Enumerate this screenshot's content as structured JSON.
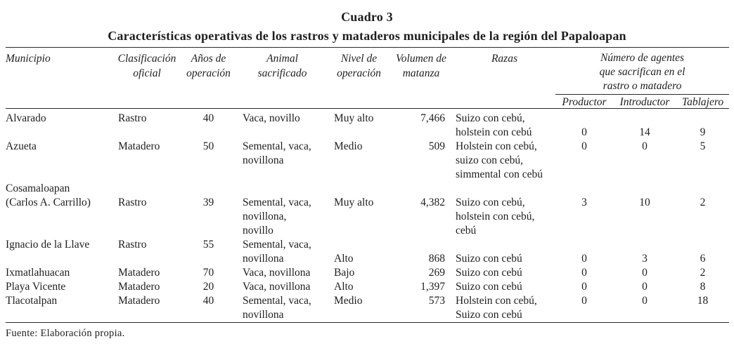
{
  "colors": {
    "ink": "#1e1e1e",
    "background": "#ffffff",
    "rule": "#2a2a2a"
  },
  "title": "Cuadro 3",
  "subtitle": "Características operativas de los rastros y mataderos municipales de la región del Papaloapan",
  "source": "Fuente: Elaboración propia.",
  "table": {
    "headers": {
      "municipio": "Municipio",
      "clasificacion": [
        "Clasificación",
        "oficial"
      ],
      "anos": [
        "Años de",
        "operación"
      ],
      "animal": [
        "Animal",
        "sacrificado"
      ],
      "nivel": [
        "Nivel de",
        "operación"
      ],
      "volumen": [
        "Volumen de",
        "matanza"
      ],
      "razas": "Razas",
      "agentes_group": [
        "Número de agentes",
        "que sacrifican en el",
        "rastro o matadero"
      ],
      "agentes_cols": [
        "Productor",
        "Introductor",
        "Tablajero"
      ]
    },
    "rows": [
      {
        "municipio": [
          "Alvarado"
        ],
        "clasificacion": [
          "Rastro"
        ],
        "anos": [
          "40"
        ],
        "animal": [
          "Vaca, novillo"
        ],
        "nivel": [
          "Muy alto"
        ],
        "volumen": [
          "7,466"
        ],
        "razas": [
          "Suizo con cebú,",
          "holstein con cebú"
        ],
        "productor": [
          "",
          "0"
        ],
        "introductor": [
          "",
          "14"
        ],
        "tablajero": [
          "",
          "9"
        ]
      },
      {
        "municipio": [
          "Azueta"
        ],
        "clasificacion": [
          "Matadero"
        ],
        "anos": [
          "50"
        ],
        "animal": [
          "Semental, vaca,",
          "novillona"
        ],
        "nivel": [
          "Medio"
        ],
        "volumen": [
          "509"
        ],
        "razas": [
          "Holstein con cebú,",
          "suizo con cebú,",
          "simmental con cebú"
        ],
        "productor": [
          "0"
        ],
        "introductor": [
          "0"
        ],
        "tablajero": [
          "5"
        ]
      },
      {
        "municipio": [
          "Cosamaloapan",
          "(Carlos A. Carrillo)"
        ],
        "clasificacion": [
          "",
          "Rastro"
        ],
        "anos": [
          "",
          "39"
        ],
        "animal": [
          "",
          "Semental, vaca,",
          "novillona,",
          "novillo"
        ],
        "nivel": [
          "",
          "Muy alto"
        ],
        "volumen": [
          "",
          "4,382"
        ],
        "razas": [
          "",
          "Suizo con cebú,",
          "holstein con cebú,",
          "cebú"
        ],
        "productor": [
          "",
          "3"
        ],
        "introductor": [
          "",
          "10"
        ],
        "tablajero": [
          "",
          "2"
        ]
      },
      {
        "municipio": [
          "Ignacio de la Llave"
        ],
        "clasificacion": [
          "Rastro"
        ],
        "anos": [
          "55"
        ],
        "animal": [
          "Semental, vaca,",
          "novillona"
        ],
        "nivel": [
          "",
          "Alto"
        ],
        "volumen": [
          "",
          "868"
        ],
        "razas": [
          "",
          "Suizo con cebú"
        ],
        "productor": [
          "",
          "0"
        ],
        "introductor": [
          "",
          "3"
        ],
        "tablajero": [
          "",
          "6"
        ]
      },
      {
        "municipio": [
          "Ixmatlahuacan"
        ],
        "clasificacion": [
          "Matadero"
        ],
        "anos": [
          "70"
        ],
        "animal": [
          "Vaca, novillona"
        ],
        "nivel": [
          "Bajo"
        ],
        "volumen": [
          "269"
        ],
        "razas": [
          "Suizo con cebú"
        ],
        "productor": [
          "0"
        ],
        "introductor": [
          "0"
        ],
        "tablajero": [
          "2"
        ]
      },
      {
        "municipio": [
          "Playa Vicente"
        ],
        "clasificacion": [
          "Matadero"
        ],
        "anos": [
          "20"
        ],
        "animal": [
          "Vaca, novillona"
        ],
        "nivel": [
          "Alto"
        ],
        "volumen": [
          "1,397"
        ],
        "razas": [
          "Suizo con cebú"
        ],
        "productor": [
          "0"
        ],
        "introductor": [
          "0"
        ],
        "tablajero": [
          "8"
        ]
      },
      {
        "municipio": [
          "Tlacotalpan"
        ],
        "clasificacion": [
          "Matadero"
        ],
        "anos": [
          "40"
        ],
        "animal": [
          "Semental, vaca,",
          "novillona"
        ],
        "nivel": [
          "Medio"
        ],
        "volumen": [
          "573"
        ],
        "razas": [
          "Holstein con cebú,",
          "Suizo con cebú"
        ],
        "productor": [
          "0"
        ],
        "introductor": [
          "0"
        ],
        "tablajero": [
          "18"
        ]
      }
    ]
  }
}
